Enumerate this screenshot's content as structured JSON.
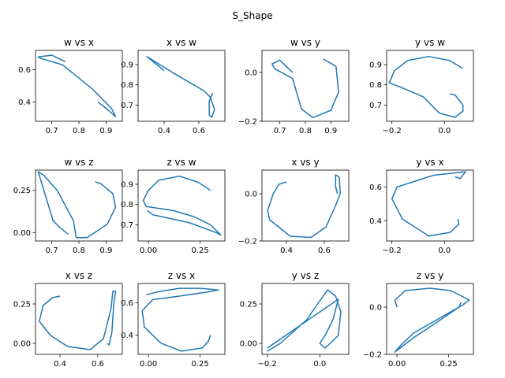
{
  "figure": {
    "title": "S_Shape",
    "line_color": "#1f77b4"
  },
  "chart_data": [
    {
      "type": "line",
      "title": "w vs x",
      "xlabel": "",
      "ylabel": "",
      "xlim": [
        0.64,
        0.96
      ],
      "ylim": [
        0.28,
        0.72
      ],
      "xticks": [
        0.7,
        0.8,
        0.9
      ],
      "xtick_labels": [
        "0.7",
        "0.8",
        "0.9"
      ],
      "yticks": [
        0.4,
        0.6
      ],
      "ytick_labels": [
        "0.4",
        "0.6"
      ],
      "x": [
        0.75,
        0.7,
        0.65,
        0.66,
        0.74,
        0.85,
        0.92,
        0.935,
        0.9,
        0.87
      ],
      "y": [
        0.65,
        0.69,
        0.68,
        0.67,
        0.63,
        0.48,
        0.36,
        0.31,
        0.36,
        0.4
      ]
    },
    {
      "type": "line",
      "title": "x vs w",
      "xlabel": "",
      "ylabel": "",
      "xlim": [
        0.25,
        0.75
      ],
      "ylim": [
        0.62,
        0.97
      ],
      "xticks": [
        0.4,
        0.6
      ],
      "xtick_labels": [
        "0.4",
        "0.6"
      ],
      "yticks": [
        0.7,
        0.8,
        0.9
      ],
      "ytick_labels": [
        "0.7",
        "0.8",
        "0.9"
      ],
      "x": [
        0.4,
        0.3,
        0.45,
        0.63,
        0.665,
        0.69,
        0.675,
        0.66,
        0.66,
        0.68
      ],
      "y": [
        0.87,
        0.94,
        0.86,
        0.77,
        0.74,
        0.68,
        0.64,
        0.65,
        0.72,
        0.76
      ]
    },
    {
      "type": "line",
      "title": "w vs y",
      "xlabel": "",
      "ylabel": "",
      "xlim": [
        0.63,
        0.97
      ],
      "ylim": [
        -0.2,
        0.09
      ],
      "xticks": [
        0.7,
        0.8,
        0.9
      ],
      "xtick_labels": [
        "0.7",
        "0.8",
        "0.9"
      ],
      "yticks": [
        -0.2,
        0.0
      ],
      "ytick_labels": [
        "−0.2",
        "0.0"
      ],
      "x": [
        0.75,
        0.7,
        0.67,
        0.68,
        0.75,
        0.785,
        0.83,
        0.9,
        0.93,
        0.92,
        0.87
      ],
      "y": [
        0.0,
        0.05,
        0.035,
        0.015,
        -0.025,
        -0.15,
        -0.185,
        -0.155,
        -0.08,
        0.025,
        0.055
      ]
    },
    {
      "type": "line",
      "title": "y vs w",
      "xlabel": "",
      "ylabel": "",
      "xlim": [
        -0.22,
        0.11
      ],
      "ylim": [
        0.62,
        0.97
      ],
      "xticks": [
        -0.2,
        0.0
      ],
      "xtick_labels": [
        "−0.2",
        "0.0"
      ],
      "yticks": [
        0.7,
        0.8,
        0.9
      ],
      "ytick_labels": [
        "0.7",
        "0.8",
        "0.9"
      ],
      "x": [
        0.07,
        0.02,
        -0.06,
        -0.14,
        -0.19,
        -0.21,
        -0.17,
        -0.08,
        -0.02,
        0.04,
        0.07,
        0.07,
        0.04,
        0.02
      ],
      "y": [
        0.88,
        0.92,
        0.94,
        0.92,
        0.87,
        0.81,
        0.79,
        0.74,
        0.66,
        0.64,
        0.67,
        0.7,
        0.75,
        0.755
      ]
    },
    {
      "type": "line",
      "title": "w vs z",
      "xlabel": "",
      "ylabel": "",
      "xlim": [
        0.64,
        0.96
      ],
      "ylim": [
        -0.05,
        0.37
      ],
      "xticks": [
        0.7,
        0.8,
        0.9
      ],
      "xtick_labels": [
        "0.7",
        "0.8",
        "0.9"
      ],
      "yticks": [
        0.0,
        0.25
      ],
      "ytick_labels": [
        "0.00",
        "0.25"
      ],
      "x": [
        0.76,
        0.73,
        0.705,
        0.65,
        0.67,
        0.72,
        0.78,
        0.79,
        0.83,
        0.905,
        0.935,
        0.925,
        0.88,
        0.86
      ],
      "y": [
        -0.01,
        0.03,
        0.07,
        0.36,
        0.34,
        0.25,
        0.07,
        -0.03,
        -0.03,
        0.05,
        0.15,
        0.23,
        0.29,
        0.3
      ]
    },
    {
      "type": "line",
      "title": "z vs w",
      "xlabel": "",
      "ylabel": "",
      "xlim": [
        -0.05,
        0.37
      ],
      "ylim": [
        0.62,
        0.97
      ],
      "xticks": [
        0.0,
        0.25
      ],
      "xtick_labels": [
        "0.00",
        "0.25"
      ],
      "yticks": [
        0.7,
        0.8,
        0.9
      ],
      "ytick_labels": [
        "0.7",
        "0.8",
        "0.9"
      ],
      "x": [
        0.3,
        0.24,
        0.15,
        0.05,
        0.0,
        -0.025,
        -0.01,
        0.12,
        0.22,
        0.3,
        0.35,
        0.33,
        0.2,
        0.02,
        -0.005
      ],
      "y": [
        0.87,
        0.91,
        0.94,
        0.92,
        0.87,
        0.82,
        0.79,
        0.77,
        0.74,
        0.7,
        0.65,
        0.66,
        0.71,
        0.75,
        0.77
      ]
    },
    {
      "type": "line",
      "title": "x vs y",
      "xlabel": "",
      "ylabel": "",
      "xlim": [
        0.27,
        0.73
      ],
      "ylim": [
        -0.2,
        0.1
      ],
      "xticks": [
        0.4,
        0.6
      ],
      "xtick_labels": [
        "0.4",
        "0.6"
      ],
      "yticks": [
        -0.2,
        0.0
      ],
      "ytick_labels": [
        "−0.2",
        "0.0"
      ],
      "x": [
        0.4,
        0.36,
        0.33,
        0.3,
        0.31,
        0.42,
        0.53,
        0.61,
        0.66,
        0.685,
        0.68,
        0.66,
        0.66,
        0.67
      ],
      "y": [
        0.05,
        0.04,
        0.0,
        -0.07,
        -0.11,
        -0.18,
        -0.185,
        -0.14,
        -0.05,
        0.0,
        0.07,
        0.08,
        0.03,
        0.0
      ]
    },
    {
      "type": "line",
      "title": "y vs x",
      "xlabel": "",
      "ylabel": "",
      "xlim": [
        -0.22,
        0.11
      ],
      "ylim": [
        0.28,
        0.7
      ],
      "xticks": [
        -0.2,
        0.0
      ],
      "xtick_labels": [
        "−0.2",
        "0.0"
      ],
      "yticks": [
        0.4,
        0.6
      ],
      "ytick_labels": [
        "0.4",
        "0.6"
      ],
      "x": [
        0.04,
        0.06,
        0.08,
        -0.04,
        -0.12,
        -0.18,
        -0.2,
        -0.16,
        -0.06,
        0.02,
        0.055,
        0.05
      ],
      "y": [
        0.66,
        0.65,
        0.69,
        0.67,
        0.63,
        0.6,
        0.53,
        0.41,
        0.31,
        0.33,
        0.38,
        0.41
      ]
    },
    {
      "type": "line",
      "title": "x vs z",
      "xlabel": "",
      "ylabel": "",
      "xlim": [
        0.27,
        0.73
      ],
      "ylim": [
        -0.07,
        0.38
      ],
      "xticks": [
        0.4,
        0.6
      ],
      "xtick_labels": [
        "0.4",
        "0.6"
      ],
      "yticks": [
        0.0,
        0.25
      ],
      "ytick_labels": [
        "0.00",
        "0.25"
      ],
      "x": [
        0.4,
        0.36,
        0.31,
        0.29,
        0.35,
        0.44,
        0.56,
        0.63,
        0.67,
        0.68,
        0.695,
        0.685,
        0.675,
        0.66,
        0.65
      ],
      "y": [
        0.3,
        0.29,
        0.24,
        0.14,
        0.05,
        -0.02,
        -0.04,
        0.03,
        0.22,
        0.33,
        0.33,
        0.25,
        0.07,
        -0.01,
        0.0
      ]
    },
    {
      "type": "line",
      "title": "z vs x",
      "xlabel": "",
      "ylabel": "",
      "xlim": [
        -0.05,
        0.37
      ],
      "ylim": [
        0.28,
        0.72
      ],
      "xticks": [
        0.0,
        0.25
      ],
      "xtick_labels": [
        "0.00",
        "0.25"
      ],
      "yticks": [
        0.4,
        0.6
      ],
      "ytick_labels": [
        "0.4",
        "0.6"
      ],
      "x": [
        -0.01,
        0.05,
        0.15,
        0.25,
        0.34,
        0.3,
        0.14,
        0.02,
        -0.03,
        -0.02,
        0.06,
        0.16,
        0.26,
        0.29,
        0.3
      ],
      "y": [
        0.65,
        0.67,
        0.69,
        0.69,
        0.68,
        0.67,
        0.64,
        0.62,
        0.55,
        0.45,
        0.35,
        0.3,
        0.32,
        0.36,
        0.4
      ]
    },
    {
      "type": "line",
      "title": "y vs z",
      "xlabel": "",
      "ylabel": "",
      "xlim": [
        -0.22,
        0.11
      ],
      "ylim": [
        -0.07,
        0.38
      ],
      "xticks": [
        -0.2,
        0.0
      ],
      "xtick_labels": [
        "−0.2",
        "0.0"
      ],
      "yticks": [
        0.0,
        0.25
      ],
      "ytick_labels": [
        "0.00",
        "0.25"
      ],
      "x": [
        -0.2,
        -0.15,
        -0.05,
        0.0,
        0.03,
        0.06,
        0.08,
        0.07,
        0.02,
        0.0,
        0.02,
        0.05,
        0.07,
        -0.2
      ],
      "y": [
        -0.05,
        0.0,
        0.15,
        0.27,
        0.34,
        0.3,
        0.2,
        0.05,
        -0.03,
        0.0,
        0.05,
        0.15,
        0.28,
        -0.03
      ]
    },
    {
      "type": "line",
      "title": "z vs y",
      "xlabel": "",
      "ylabel": "",
      "xlim": [
        -0.05,
        0.37
      ],
      "ylim": [
        -0.2,
        0.1
      ],
      "xticks": [
        0.0,
        0.25
      ],
      "xtick_labels": [
        "0.00",
        "0.25"
      ],
      "yticks": [
        -0.2,
        0.0
      ],
      "ytick_labels": [
        "−0.2",
        "0.0"
      ],
      "x": [
        0.0,
        -0.01,
        0.04,
        0.16,
        0.26,
        0.35,
        0.32,
        0.22,
        0.08,
        0.02,
        -0.01,
        0.08,
        0.2,
        0.3,
        0.31
      ],
      "y": [
        0.0,
        0.03,
        0.07,
        0.08,
        0.07,
        0.03,
        0.01,
        -0.04,
        -0.11,
        -0.16,
        -0.19,
        -0.13,
        -0.06,
        0.0,
        0.02
      ]
    }
  ]
}
